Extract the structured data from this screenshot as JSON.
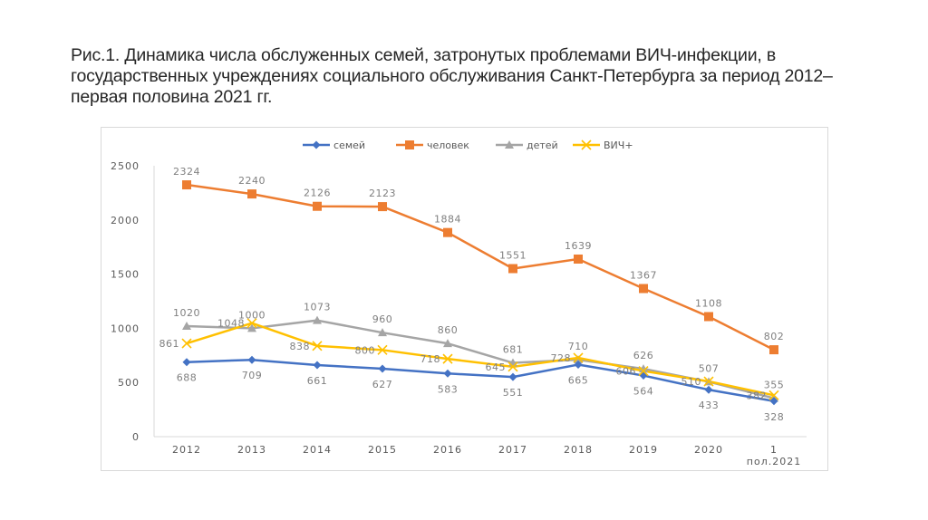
{
  "caption": "Рис.1. Динамика числа обслуженных семей, затронутых проблемами ВИЧ-инфекции, в государственных учреждениях социального обслуживания Санкт-Петербурга за период 2012–первая половина 2021 гг.",
  "chart_data": {
    "type": "line",
    "title": "",
    "xlabel": "",
    "ylabel": "",
    "categories": [
      "2012",
      "2013",
      "2014",
      "2015",
      "2016",
      "2017",
      "2018",
      "2019",
      "2020",
      "1 пол.2021"
    ],
    "category_lines": [
      [
        "2012"
      ],
      [
        "2013"
      ],
      [
        "2014"
      ],
      [
        "2015"
      ],
      [
        "2016"
      ],
      [
        "2017"
      ],
      [
        "2018"
      ],
      [
        "2019"
      ],
      [
        "2020"
      ],
      [
        "1",
        "пол.2021"
      ]
    ],
    "ylim": [
      0,
      2500
    ],
    "yticks": [
      0,
      500,
      1000,
      1500,
      2000,
      2500
    ],
    "grid": false,
    "legend_position": "top",
    "series": [
      {
        "name": "семей",
        "color": "#4472c4",
        "marker": "diamond",
        "label_pos": "below",
        "values": [
          688,
          709,
          661,
          627,
          583,
          551,
          665,
          564,
          433,
          328
        ]
      },
      {
        "name": "человек",
        "color": "#ed7d31",
        "marker": "square",
        "label_pos": "above",
        "values": [
          2324,
          2240,
          2126,
          2123,
          1884,
          1551,
          1639,
          1367,
          1108,
          802
        ]
      },
      {
        "name": "детей",
        "color": "#a5a5a5",
        "marker": "triangle",
        "label_pos": "above",
        "values": [
          1020,
          1000,
          1073,
          960,
          860,
          681,
          710,
          626,
          507,
          355
        ]
      },
      {
        "name": "ВИЧ+",
        "color": "#ffc000",
        "marker": "x",
        "label_pos": "left",
        "values": [
          861,
          1048,
          838,
          800,
          718,
          645,
          728,
          606,
          510,
          382
        ]
      }
    ]
  }
}
